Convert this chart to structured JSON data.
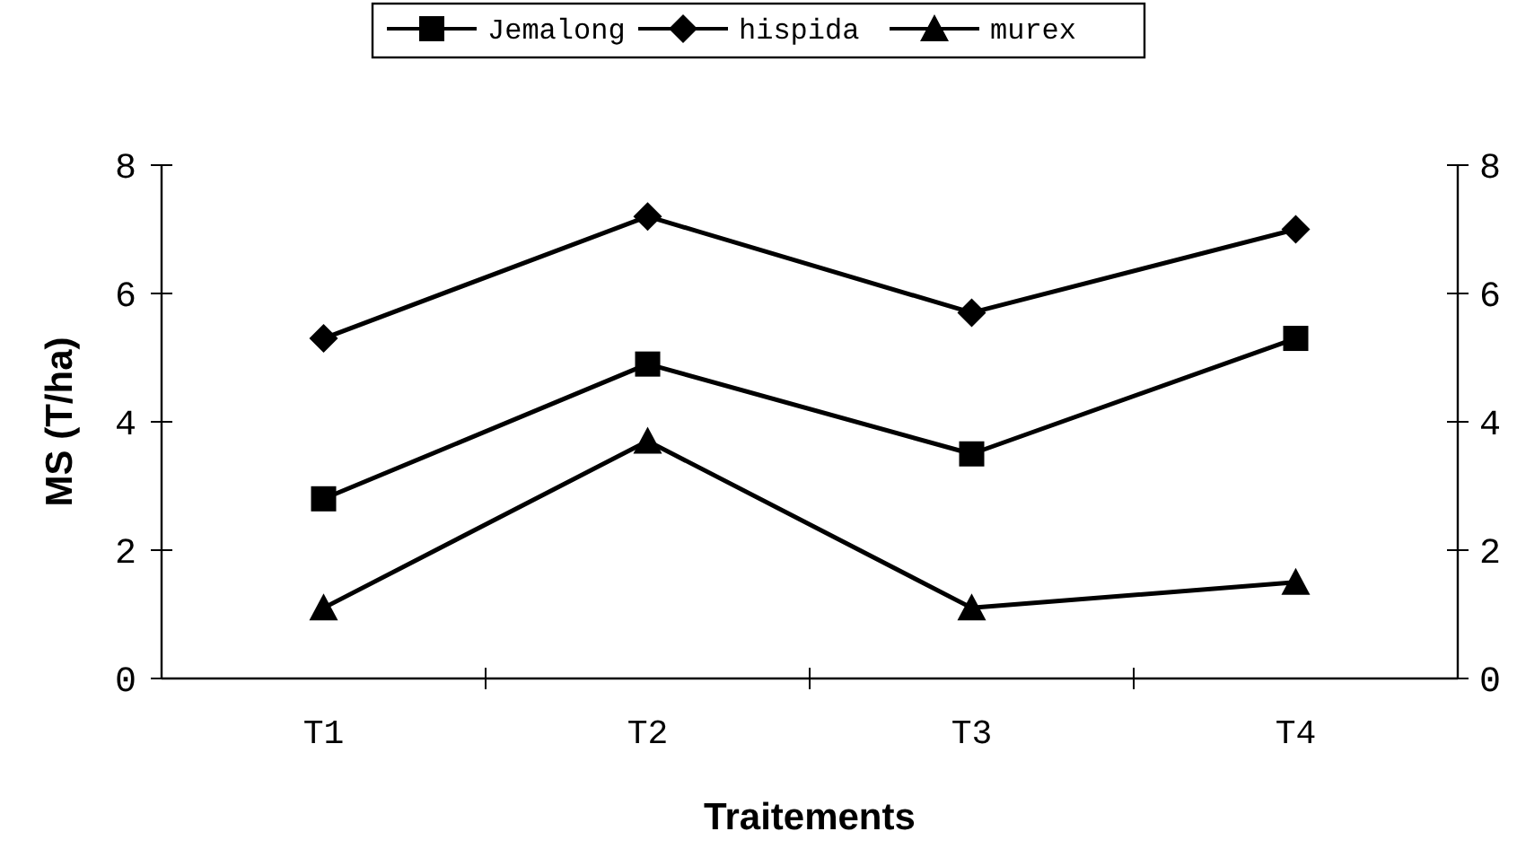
{
  "chart_data": {
    "type": "line",
    "xlabel": "Traitements",
    "ylabel": "MS (T/ha)",
    "categories": [
      "T1",
      "T2",
      "T3",
      "T4"
    ],
    "series": [
      {
        "name": "Jemalong",
        "color": "#000000",
        "marker": "square",
        "values": [
          2.8,
          4.9,
          3.5,
          5.3
        ]
      },
      {
        "name": "hispida",
        "color": "#000000",
        "marker": "diamond",
        "values": [
          5.3,
          7.2,
          5.7,
          7.0
        ]
      },
      {
        "name": "murex",
        "color": "#000000",
        "marker": "triangle",
        "values": [
          1.1,
          3.7,
          1.1,
          1.5
        ]
      }
    ],
    "ylim": [
      0,
      8
    ],
    "yticks": [
      0,
      2,
      4,
      6,
      8
    ],
    "y2lim": [
      0,
      8
    ],
    "y2ticks": [
      0,
      2,
      4,
      6,
      8
    ],
    "legend": "top",
    "grid": false,
    "line_style": "solid"
  }
}
